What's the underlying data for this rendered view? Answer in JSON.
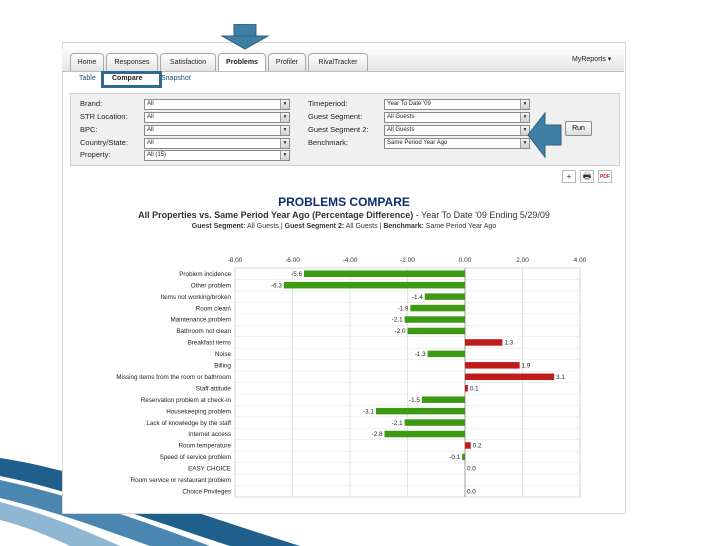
{
  "nav": {
    "tabs": [
      "Home",
      "Responses",
      "Satisfaction",
      "Problems",
      "Profiler",
      "RivalTracker"
    ],
    "active_tab": "Problems",
    "my_reports": "MyReports ▾"
  },
  "subnav": {
    "table": "Table",
    "compare": "Compare",
    "snapshot": "Snapshot"
  },
  "filters": {
    "brand": {
      "label": "Brand:",
      "value": "All"
    },
    "str_location": {
      "label": "STR Location:",
      "value": "All"
    },
    "bpc": {
      "label": "BPC:",
      "value": "All"
    },
    "country_state": {
      "label": "Country/State:",
      "value": "All"
    },
    "property": {
      "label": "Property:",
      "value": "All (15)"
    },
    "timeperiod": {
      "label": "Timeperiod:",
      "value": "Year To Date '09"
    },
    "guest_segment": {
      "label": "Guest Segment:",
      "value": "All Guests"
    },
    "guest_segment_2": {
      "label": "Guest Segment 2:",
      "value": "All Guests"
    },
    "benchmark": {
      "label": "Benchmark:",
      "value": "Same Period Year Ago"
    },
    "run_label": "Run"
  },
  "tools": {
    "add": "+",
    "print": "🖶",
    "pdf": "PDF"
  },
  "report": {
    "title": "PROBLEMS COMPARE",
    "subtitle_bold": "All Properties vs. Same Period Year Ago (Percentage Difference)",
    "subtitle_rest": " - Year To Date '09 Ending 5/29/09",
    "seg1_label": "Guest Segment:",
    "seg1_value": " All Guests",
    "seg2_label": "Guest Segment 2:",
    "seg2_value": " All Guests",
    "bench_label": "Benchmark:",
    "bench_value": " Same Period Year Ago",
    "sep": " | "
  },
  "colors": {
    "negative": "#3d9a12",
    "positive": "#c01a1a",
    "arrow": "#3f7fa6"
  },
  "chart_data": {
    "type": "bar",
    "orientation": "horizontal",
    "xlim": [
      -8,
      4
    ],
    "ticks": [
      -8,
      -6,
      -4,
      -2,
      0,
      2,
      4
    ],
    "tick_labels": [
      "-8.00",
      "-6.00",
      "-4.00",
      "-2.00",
      "0.00",
      "2.00",
      "4.00"
    ],
    "grid": true,
    "categories": [
      "Problem incidence",
      "Other problem",
      "Items not working/broken",
      "Room clean\\",
      "Maintenance problem",
      "Bathroom not clean",
      "Breakfast items",
      "Noise",
      "Billing",
      "Missing items from the room or bathroom",
      "Staff attitude",
      "Reservation problem at check-in",
      "Housekeeping problem",
      "Lack of knowledge by the staff",
      "Internet access",
      "Room temperature",
      "Speed of service problem",
      "EASY CHOICE",
      "Room service or restaurant problem",
      "Choice Privileges"
    ],
    "values": [
      -5.6,
      -6.3,
      -1.4,
      -1.9,
      -2.1,
      -2.0,
      1.3,
      -1.3,
      1.9,
      3.1,
      0.1,
      -1.5,
      -3.1,
      -2.1,
      -2.8,
      0.2,
      -0.1,
      0.0,
      null,
      0.0
    ],
    "value_labels": [
      "-5.6",
      "-6.3",
      "-1.4",
      "-1.9",
      "-2.1",
      "-2.0",
      "1.3",
      "-1.3",
      "1.9",
      "3.1",
      "0.1",
      "-1.5",
      "-3.1",
      "-2.1",
      "-2.8",
      "0.2",
      "-0.1",
      "0.0",
      "",
      "0.0"
    ]
  }
}
